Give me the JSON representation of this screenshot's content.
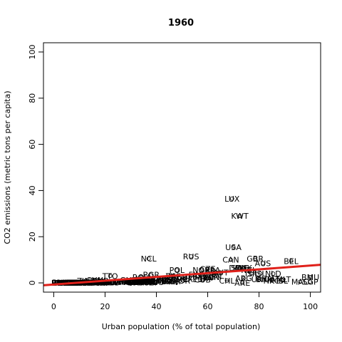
{
  "chart_data": {
    "type": "scatter",
    "title": "1960",
    "xlabel": "Urban population (% of total population)",
    "ylabel": "CO2 emissions (metric tons per capita)",
    "xlim": [
      -4,
      104
    ],
    "ylim": [
      -4,
      104
    ],
    "x_ticks": [
      "0",
      "20",
      "40",
      "60",
      "80",
      "100"
    ],
    "y_ticks": [
      "0",
      "20",
      "40",
      "60",
      "80",
      "100"
    ],
    "grid": false,
    "marker": "open-circle",
    "points": [
      {
        "label": "LUX",
        "x": 69.5,
        "y": 36.5
      },
      {
        "label": "KWT",
        "x": 72.5,
        "y": 29.0
      },
      {
        "label": "USA",
        "x": 70.0,
        "y": 15.5
      },
      {
        "label": "RUS",
        "x": 53.5,
        "y": 11.5
      },
      {
        "label": "NCL",
        "x": 37.0,
        "y": 10.5
      },
      {
        "label": "GBR",
        "x": 78.5,
        "y": 10.5
      },
      {
        "label": "BEL",
        "x": 92.5,
        "y": 9.5
      },
      {
        "label": "CAN",
        "x": 69.0,
        "y": 10.0
      },
      {
        "label": "AUS",
        "x": 81.5,
        "y": 8.5
      },
      {
        "label": "SWE",
        "x": 72.5,
        "y": 6.5
      },
      {
        "label": "DEU",
        "x": 71.5,
        "y": 6.5
      },
      {
        "label": "DNK",
        "x": 74.0,
        "y": 6.5
      },
      {
        "label": "NZL",
        "x": 76.0,
        "y": 5.5
      },
      {
        "label": "CZE",
        "x": 60.0,
        "y": 6.0
      },
      {
        "label": "NOR",
        "x": 57.5,
        "y": 5.5
      },
      {
        "label": "POL",
        "x": 48.0,
        "y": 5.5
      },
      {
        "label": "ISL",
        "x": 80.5,
        "y": 4.0
      },
      {
        "label": "NLD",
        "x": 85.5,
        "y": 4.0
      },
      {
        "label": "ISR",
        "x": 77.0,
        "y": 4.0
      },
      {
        "label": "FIN",
        "x": 55.0,
        "y": 3.5
      },
      {
        "label": "HUN",
        "x": 56.0,
        "y": 3.0
      },
      {
        "label": "BGR",
        "x": 38.0,
        "y": 3.5
      },
      {
        "label": "ROU",
        "x": 34.0,
        "y": 2.5
      },
      {
        "label": "JPN",
        "x": 63.0,
        "y": 3.0
      },
      {
        "label": "ZAF",
        "x": 46.5,
        "y": 3.0
      },
      {
        "label": "CHL",
        "x": 67.5,
        "y": 1.0
      },
      {
        "label": "ARE",
        "x": 73.5,
        "y": 0.0
      },
      {
        "label": "HKG",
        "x": 85.0,
        "y": 1.0
      },
      {
        "label": "ISL",
        "x": 89.0,
        "y": 1.0
      },
      {
        "label": "MAC",
        "x": 96.0,
        "y": 0.5
      },
      {
        "label": "SGP",
        "x": 100.0,
        "y": 0.5
      },
      {
        "label": "BMU",
        "x": 100.0,
        "y": 2.5
      },
      {
        "label": "ARG",
        "x": 74.0,
        "y": 2.0
      },
      {
        "label": "URY",
        "x": 80.0,
        "y": 1.5
      },
      {
        "label": "VEN",
        "x": 61.5,
        "y": 2.5
      },
      {
        "label": "MEX",
        "x": 51.0,
        "y": 1.5
      },
      {
        "label": "COL",
        "x": 45.0,
        "y": 0.8
      },
      {
        "label": "BRA",
        "x": 45.0,
        "y": 0.6
      },
      {
        "label": "TUR",
        "x": 31.5,
        "y": 0.8
      },
      {
        "label": "CHN",
        "x": 16.0,
        "y": 1.2
      },
      {
        "label": "IND",
        "x": 18.0,
        "y": 0.3
      },
      {
        "label": "PAK",
        "x": 22.0,
        "y": 0.3
      },
      {
        "label": "EGY",
        "x": 38.0,
        "y": 0.5
      },
      {
        "label": "PER",
        "x": 46.5,
        "y": 0.7
      },
      {
        "label": "KOR",
        "x": 27.5,
        "y": 0.5
      },
      {
        "label": "PHL",
        "x": 30.0,
        "y": 0.3
      },
      {
        "label": "IDN",
        "x": 14.5,
        "y": 0.2
      },
      {
        "label": "THA",
        "x": 19.5,
        "y": 0.1
      },
      {
        "label": "NGA",
        "x": 15.5,
        "y": 0.1
      },
      {
        "label": "ETH",
        "x": 6.5,
        "y": 0.0
      },
      {
        "label": "BDI",
        "x": 2.0,
        "y": 0.0
      },
      {
        "label": "RWA",
        "x": 2.5,
        "y": 0.0
      },
      {
        "label": "UGA",
        "x": 4.5,
        "y": 0.0
      },
      {
        "label": "MWI",
        "x": 4.5,
        "y": 0.0
      },
      {
        "label": "NPL",
        "x": 3.5,
        "y": 0.0
      },
      {
        "label": "TZA",
        "x": 5.0,
        "y": 0.0
      },
      {
        "label": "KEN",
        "x": 7.5,
        "y": 0.2
      },
      {
        "label": "BFA",
        "x": 4.5,
        "y": 0.0
      },
      {
        "label": "NER",
        "x": 5.5,
        "y": 0.0
      },
      {
        "label": "MLI",
        "x": 11.0,
        "y": 0.0
      },
      {
        "label": "TCD",
        "x": 7.0,
        "y": 0.0
      },
      {
        "label": "AFG",
        "x": 8.5,
        "y": 0.0
      },
      {
        "label": "BGD",
        "x": 5.0,
        "y": 0.0
      },
      {
        "label": "KHM",
        "x": 10.5,
        "y": 0.0
      },
      {
        "label": "LAO",
        "x": 8.0,
        "y": 0.0
      },
      {
        "label": "MMR",
        "x": 19.0,
        "y": 0.1
      },
      {
        "label": "VNM",
        "x": 14.5,
        "y": 0.3
      },
      {
        "label": "SDN",
        "x": 11.0,
        "y": 0.1
      },
      {
        "label": "GHA",
        "x": 23.0,
        "y": 0.3
      },
      {
        "label": "CIV",
        "x": 17.5,
        "y": 0.2
      },
      {
        "label": "SEN",
        "x": 23.0,
        "y": 0.3
      },
      {
        "label": "CMR",
        "x": 14.0,
        "y": 0.1
      },
      {
        "label": "ZMB",
        "x": 18.0,
        "y": 0.9
      },
      {
        "label": "ZWE",
        "x": 12.5,
        "y": 1.0
      },
      {
        "label": "MAR",
        "x": 29.0,
        "y": 0.5
      },
      {
        "label": "DZA",
        "x": 30.5,
        "y": 0.6
      },
      {
        "label": "TUN",
        "x": 37.5,
        "y": 0.5
      },
      {
        "label": "SYR",
        "x": 37.0,
        "y": 0.7
      },
      {
        "label": "IRQ",
        "x": 43.0,
        "y": 1.0
      },
      {
        "label": "IRN",
        "x": 34.0,
        "y": 0.9
      },
      {
        "label": "JOR",
        "x": 50.5,
        "y": 1.0
      },
      {
        "label": "LBN",
        "x": 42.0,
        "y": 1.8
      },
      {
        "label": "SAU",
        "x": 31.5,
        "y": 0.7
      },
      {
        "label": "GRC",
        "x": 43.0,
        "y": 1.2
      },
      {
        "label": "PRT",
        "x": 35.0,
        "y": 0.8
      },
      {
        "label": "ESP",
        "x": 57.0,
        "y": 1.6
      },
      {
        "label": "ITA",
        "x": 59.5,
        "y": 2.1
      },
      {
        "label": "FRA",
        "x": 62.0,
        "y": 5.5
      },
      {
        "label": "AUT",
        "x": 65.0,
        "y": 4.5
      },
      {
        "label": "CHE",
        "x": 51.0,
        "y": 2.5
      },
      {
        "label": "IRL",
        "x": 46.0,
        "y": 3.0
      },
      {
        "label": "CUB",
        "x": 58.0,
        "y": 1.4
      },
      {
        "label": "JAM",
        "x": 34.0,
        "y": 1.0
      },
      {
        "label": "TTO",
        "x": 22.0,
        "y": 3.0
      },
      {
        "label": "PAN",
        "x": 41.0,
        "y": 0.8
      },
      {
        "label": "CRI",
        "x": 34.0,
        "y": 0.4
      },
      {
        "label": "DOM",
        "x": 30.0,
        "y": 0.4
      },
      {
        "label": "ECU",
        "x": 34.0,
        "y": 0.4
      },
      {
        "label": "BOL",
        "x": 37.0,
        "y": 0.4
      },
      {
        "label": "PRY",
        "x": 35.5,
        "y": 0.2
      },
      {
        "label": "GTM",
        "x": 31.5,
        "y": 0.3
      },
      {
        "label": "HND",
        "x": 22.5,
        "y": 0.2
      },
      {
        "label": "SLV",
        "x": 38.0,
        "y": 0.2
      },
      {
        "label": "NIC",
        "x": 40.0,
        "y": 0.3
      },
      {
        "label": "HTI",
        "x": 15.5,
        "y": 0.1
      },
      {
        "label": "MYS",
        "x": 26.5,
        "y": 0.5
      },
      {
        "label": "LKA",
        "x": 16.5,
        "y": 0.2
      },
      {
        "label": "MNG",
        "x": 35.5,
        "y": 1.5
      },
      {
        "label": "PNG",
        "x": 2.5,
        "y": 0.1
      },
      {
        "label": "FJI",
        "x": 30.0,
        "y": 0.6
      },
      {
        "label": "GAB",
        "x": 17.5,
        "y": 0.4
      },
      {
        "label": "COG",
        "x": 31.5,
        "y": 0.2
      },
      {
        "label": "AGO",
        "x": 10.5,
        "y": 0.1
      },
      {
        "label": "MOZ",
        "x": 3.5,
        "y": 0.1
      },
      {
        "label": "MDG",
        "x": 10.5,
        "y": 0.1
      },
      {
        "label": "SOM",
        "x": 17.5,
        "y": 0.0
      },
      {
        "label": "LBR",
        "x": 20.0,
        "y": 0.1
      },
      {
        "label": "SLE",
        "x": 17.0,
        "y": 0.1
      },
      {
        "label": "GIN",
        "x": 10.5,
        "y": 0.1
      },
      {
        "label": "TGO",
        "x": 10.0,
        "y": 0.1
      },
      {
        "label": "BEN",
        "x": 9.5,
        "y": 0.1
      },
      {
        "label": "MRT",
        "x": 7.0,
        "y": 0.0
      },
      {
        "label": "YEM",
        "x": 9.0,
        "y": 0.0
      },
      {
        "label": "OMN",
        "x": 16.5,
        "y": 0.0
      },
      {
        "label": "BHR",
        "x": 82.0,
        "y": 1.5
      },
      {
        "label": "QAT",
        "x": 85.0,
        "y": 1.5
      },
      {
        "label": "MLT",
        "x": 89.5,
        "y": 1.5
      },
      {
        "label": "CYP",
        "x": 35.5,
        "y": 1.2
      },
      {
        "label": "ALB",
        "x": 30.5,
        "y": 1.1
      },
      {
        "label": "GUY",
        "x": 29.0,
        "y": 1.2
      },
      {
        "label": "SUR",
        "x": 47.0,
        "y": 1.5
      },
      {
        "label": "BRB",
        "x": 36.5,
        "y": 0.6
      },
      {
        "label": "BHS",
        "x": 60.0,
        "y": 2.8
      },
      {
        "label": "LCA",
        "x": 22.0,
        "y": 0.2
      },
      {
        "label": "GRD",
        "x": 32.0,
        "y": 0.2
      }
    ],
    "trend_line": {
      "intercept": -0.7,
      "slope": 0.082
    }
  }
}
